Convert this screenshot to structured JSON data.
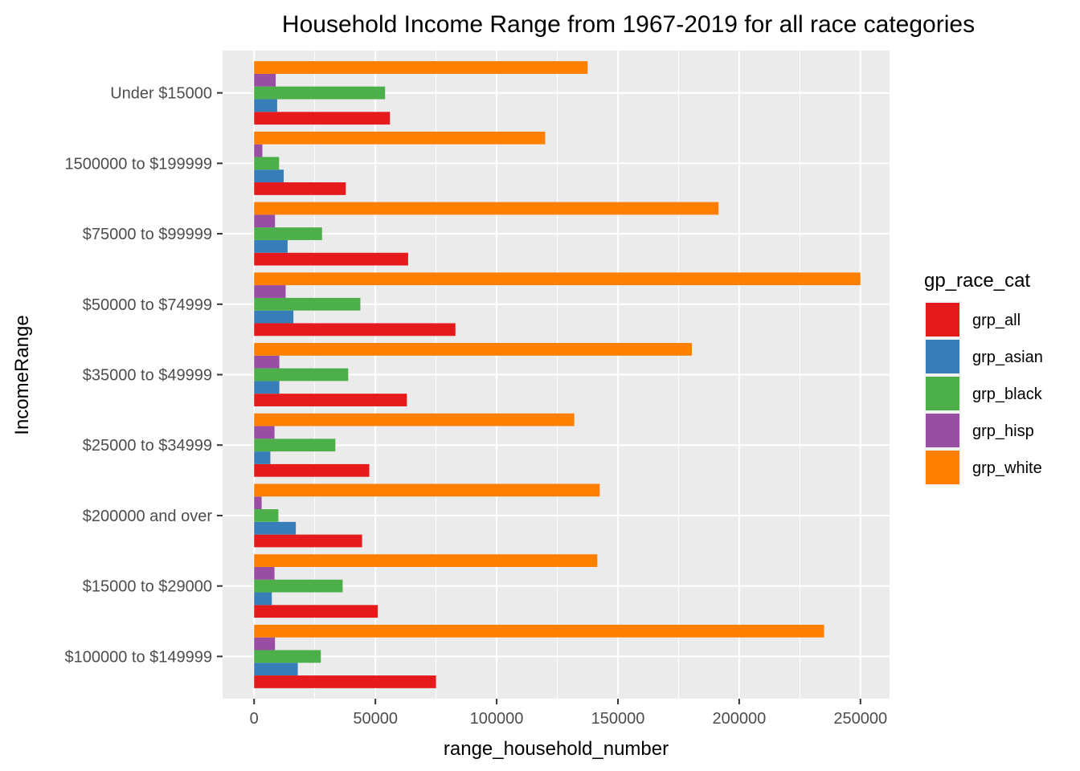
{
  "chart_data": {
    "type": "bar",
    "orientation": "horizontal",
    "title": "Household Income Range from 1967-2019 for all race categories",
    "xlabel": "range_household_number",
    "ylabel": "IncomeRange",
    "xlim": [
      -13000,
      262000
    ],
    "x_ticks": [
      0,
      50000,
      100000,
      150000,
      200000,
      250000
    ],
    "categories": [
      "$100000 to $149999",
      "$15000 to $29000",
      "$200000 and over",
      "$25000 to $34999",
      "$35000 to $49999",
      "$50000 to $74999",
      "$75000 to $99999",
      "1500000 to $199999",
      "Under $15000"
    ],
    "series": [
      {
        "name": "grp_all",
        "color": "#e41a1c",
        "values": [
          75000,
          51000,
          44500,
          47500,
          63000,
          83000,
          63500,
          37800,
          56000
        ]
      },
      {
        "name": "grp_asian",
        "color": "#377eb8",
        "values": [
          18000,
          7300,
          17200,
          6700,
          10400,
          16200,
          13800,
          12200,
          9500
        ]
      },
      {
        "name": "grp_black",
        "color": "#4daf4a",
        "values": [
          27500,
          36500,
          10000,
          33500,
          38800,
          43800,
          28000,
          10300,
          54000
        ]
      },
      {
        "name": "grp_hisp",
        "color": "#984ea3",
        "values": [
          8600,
          8400,
          3100,
          8400,
          10400,
          13000,
          8600,
          3400,
          8900
        ]
      },
      {
        "name": "grp_white",
        "color": "#ff7f00",
        "values": [
          235000,
          141500,
          142500,
          132000,
          180500,
          250000,
          191500,
          120000,
          137500
        ]
      }
    ],
    "grid": true,
    "legend": {
      "title": "gp_race_cat",
      "placement": "right"
    }
  }
}
